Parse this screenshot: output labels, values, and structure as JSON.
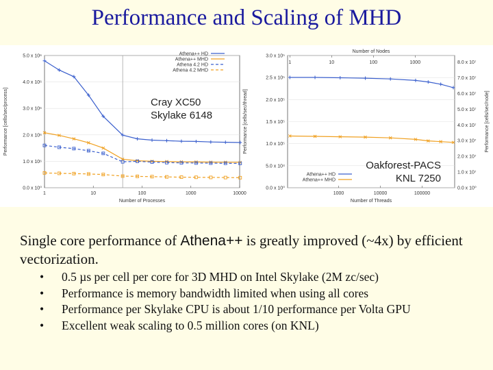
{
  "slide": {
    "title": "Performance and Scaling of MHD",
    "paragraph_prefix": "Single core performance of ",
    "paragraph_code": "Athena++",
    "paragraph_suffix": " is greatly improved (~4x) by efficient vectorization.",
    "bullets": [
      "0.5 µs per cell per core for 3D MHD on Intel Skylake (2M zc/sec)",
      "Performance is memory bandwidth limited when using all cores",
      "Performance per Skylake CPU is about 1/10 performance per Volta GPU",
      "Excellent weak scaling to 0.5 million cores (on KNL)"
    ]
  },
  "chart_data": [
    {
      "type": "line",
      "xlabel": "Number of Processes",
      "ylabel": "Performance [cells/sec/process]",
      "x_scale": "log",
      "xlim": [
        1,
        10000
      ],
      "ylim": [
        0,
        5000000
      ],
      "xticks": [
        "1",
        "10",
        "100",
        "1000",
        "10000"
      ],
      "yticks": [
        "0.0 x 10⁰",
        "1.0 x 10⁶",
        "2.0 x 10⁶",
        "3.0 x 10⁶",
        "4.0 x 10⁶",
        "5.0 x 10⁶"
      ],
      "annotation": [
        "Cray XC50",
        "Skylake 6148"
      ],
      "vline_x": 40,
      "legend_position": "top-right",
      "series": [
        {
          "name": "Athena++ HD",
          "color": "#3a5fcd",
          "dashed": false,
          "x": [
            1,
            2,
            4,
            8,
            16,
            40,
            80,
            160,
            320,
            640,
            1280,
            2560,
            5120,
            10240
          ],
          "y": [
            4800000,
            4450000,
            4200000,
            3500000,
            2700000,
            1990000,
            1850000,
            1800000,
            1780000,
            1760000,
            1750000,
            1730000,
            1720000,
            1710000
          ]
        },
        {
          "name": "Athena++ MHD",
          "color": "#f0a020",
          "dashed": false,
          "x": [
            1,
            2,
            4,
            8,
            16,
            40,
            80,
            160,
            320,
            640,
            1280,
            2560,
            5120,
            10240
          ],
          "y": [
            2080000,
            1980000,
            1850000,
            1700000,
            1500000,
            1080000,
            1020000,
            1000000,
            990000,
            980000,
            975000,
            970000,
            965000,
            960000
          ]
        },
        {
          "name": "Athena 4.2   HD",
          "color": "#3a5fcd",
          "dashed": true,
          "x": [
            1,
            2,
            4,
            8,
            16,
            40,
            80,
            160,
            320,
            640,
            1280,
            2560,
            5120,
            10240
          ],
          "y": [
            1600000,
            1530000,
            1480000,
            1400000,
            1300000,
            980000,
            1000000,
            970000,
            950000,
            940000,
            935000,
            930000,
            925000,
            920000
          ]
        },
        {
          "name": "Athena 4.2 MHD",
          "color": "#f0a020",
          "dashed": true,
          "x": [
            1,
            2,
            4,
            8,
            16,
            40,
            80,
            160,
            320,
            640,
            1280,
            2560,
            5120,
            10240
          ],
          "y": [
            560000,
            545000,
            535000,
            520000,
            500000,
            440000,
            430000,
            420000,
            410000,
            400000,
            395000,
            390000,
            385000,
            380000
          ]
        }
      ]
    },
    {
      "type": "line",
      "xlabel": "Number of Threads",
      "x2label": "Number of Nodes",
      "ylabel": "Performance [cells/sec/thread]",
      "y2label": "Performance [cells/sec/node]",
      "x_scale": "log",
      "xlim": [
        60,
        600000
      ],
      "ylim": [
        0,
        350000
      ],
      "xticks": [
        "1000",
        "10000",
        "100000"
      ],
      "x2ticks": [
        "1",
        "10",
        "100",
        "1000"
      ],
      "yticks": [
        "0.0 x 10⁰",
        "5.0 x 10⁴",
        "1.0 x 10⁵",
        "1.5 x 10⁵",
        "2.0 x 10⁵",
        "2.5 x 10⁵",
        "3.0 x 10⁵"
      ],
      "y2ticks": [
        "0.0 x 10⁰",
        "1.0 x 10⁷",
        "2.0 x 10⁷",
        "3.0 x 10⁷",
        "4.0 x 10⁷",
        "5.0 x 10⁷",
        "6.0 x 10⁷",
        "7.0 x 10⁷",
        "8.0 x 10⁷"
      ],
      "annotation": [
        "Oakforest-PACS",
        "KNL 7250"
      ],
      "legend_position": "bottom-left",
      "series": [
        {
          "name": "Athena++  HD",
          "color": "#3a5fcd",
          "dashed": false,
          "x": [
            68,
            272,
            1088,
            4352,
            17408,
            69632,
            139264,
            278528,
            557056
          ],
          "y": [
            292000,
            292000,
            291000,
            290000,
            288000,
            284000,
            280000,
            274000,
            265000
          ]
        },
        {
          "name": "Athena++ MHD",
          "color": "#f0a020",
          "dashed": false,
          "x": [
            68,
            272,
            1088,
            4352,
            17408,
            69632,
            139264,
            278528,
            557056
          ],
          "y": [
            137000,
            136000,
            135000,
            134000,
            132000,
            128000,
            124000,
            122000,
            120000
          ]
        }
      ]
    }
  ]
}
